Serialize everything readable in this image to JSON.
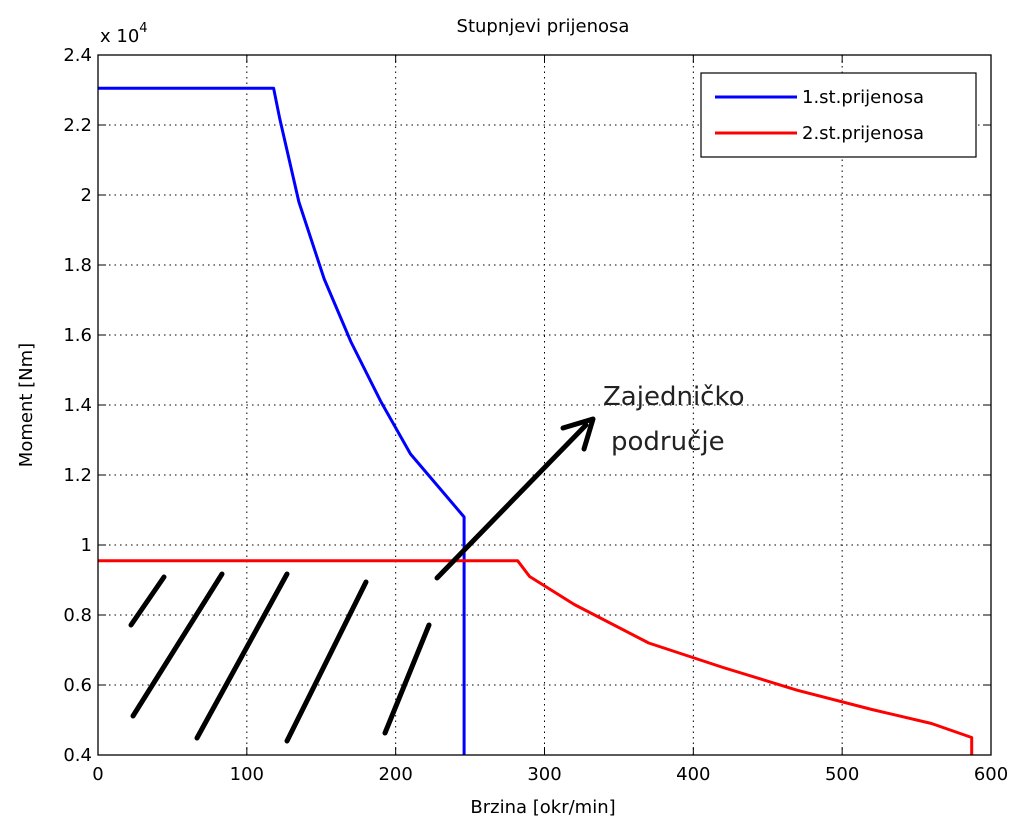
{
  "chart_data": {
    "type": "line",
    "title": "Stupnjevi prijenosa",
    "xlabel": "Brzina [okr/min]",
    "ylabel": "Moment [Nm]",
    "y_multiplier_label": "x 10",
    "y_multiplier_exp": "4",
    "xlim": [
      0,
      600
    ],
    "ylim": [
      0.4,
      2.4
    ],
    "grid": true,
    "legend_position": "top-right",
    "x_ticks": [
      0,
      100,
      200,
      300,
      400,
      500,
      600
    ],
    "x_tick_labels": [
      "0",
      "100",
      "200",
      "300",
      "400",
      "500",
      "600"
    ],
    "y_ticks": [
      0.4,
      0.6,
      0.8,
      1.0,
      1.2,
      1.4,
      1.6,
      1.8,
      2.0,
      2.2,
      2.4
    ],
    "y_tick_labels": [
      "0.4",
      "0.6",
      "0.8",
      "1",
      "1.2",
      "1.4",
      "1.6",
      "1.8",
      "2",
      "2.2",
      "2.4"
    ],
    "series": [
      {
        "name": "1.st.prijenosa",
        "color": "#0000ff",
        "x": [
          0,
          118,
          122,
          135,
          152,
          170,
          190,
          210,
          230,
          246,
          246,
          246
        ],
        "y": [
          2.305,
          2.305,
          2.22,
          1.98,
          1.76,
          1.58,
          1.41,
          1.26,
          1.16,
          1.08,
          0.98,
          0.4
        ]
      },
      {
        "name": "2.st.prijenosa",
        "color": "#ff0000",
        "x": [
          0,
          282,
          290,
          320,
          370,
          420,
          470,
          520,
          560,
          587,
          587
        ],
        "y": [
          0.955,
          0.955,
          0.91,
          0.83,
          0.72,
          0.65,
          0.585,
          0.53,
          0.49,
          0.45,
          0.4
        ]
      }
    ],
    "annotation": {
      "line1": "Zajedničko",
      "line2": "područje"
    }
  }
}
